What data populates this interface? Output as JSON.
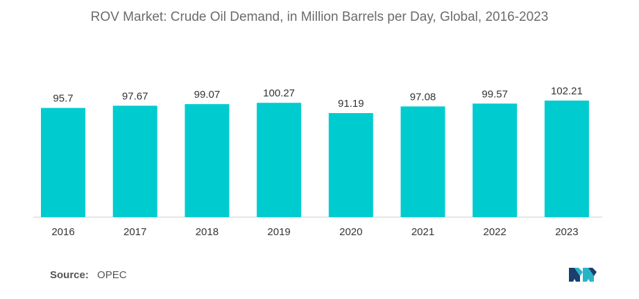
{
  "chart_data": {
    "type": "bar",
    "title": "ROV Market: Crude Oil Demand, in Million Barrels per Day, Global, 2016-2023",
    "categories": [
      "2016",
      "2017",
      "2018",
      "2019",
      "2020",
      "2021",
      "2022",
      "2023"
    ],
    "values": [
      95.7,
      97.67,
      99.07,
      100.27,
      91.19,
      97.08,
      99.57,
      102.21
    ],
    "value_labels": [
      "95.7",
      "97.67",
      "99.07",
      "100.27",
      "91.19",
      "97.08",
      "99.57",
      "102.21"
    ],
    "xlabel": "",
    "ylabel": "",
    "grid": false,
    "legend": "none",
    "bar_color": "#00ccd0"
  },
  "source": {
    "label": "Source:",
    "value": "OPEC"
  },
  "colors": {
    "title": "#6b6b6b",
    "axis": "#cccccc",
    "text": "#333333",
    "logo_dark": "#1b3f6e",
    "logo_light": "#28b4c8"
  }
}
